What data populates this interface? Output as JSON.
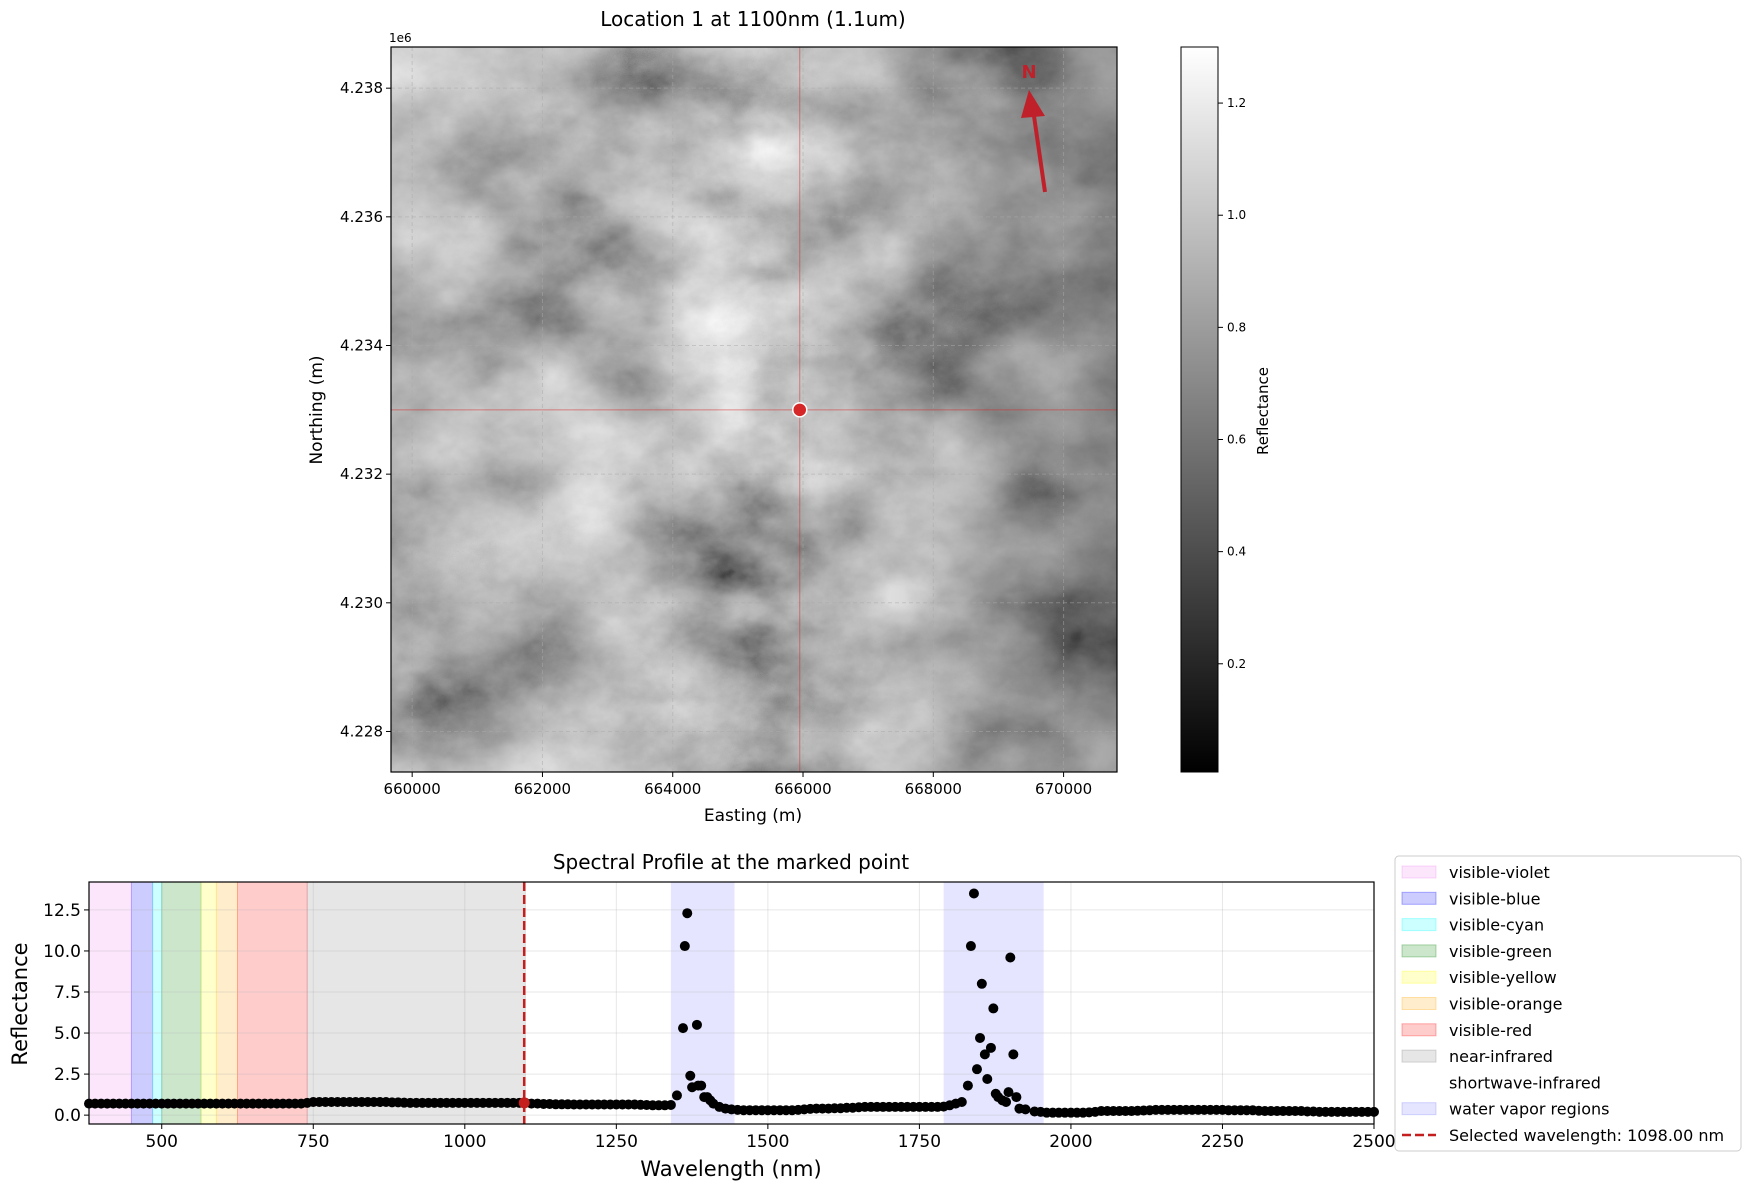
{
  "chart_data": [
    {
      "type": "heatmap",
      "title": "Location 1 at 1100nm (1.1um)",
      "xlabel": "Easting (m)",
      "ylabel": "Northing (m)",
      "y_offset_label": "1e6",
      "xlim": [
        659675,
        670820
      ],
      "ylim": [
        4227370,
        4238640
      ],
      "xticks": [
        660000,
        662000,
        664000,
        666000,
        668000,
        670000
      ],
      "xtick_labels": [
        "660000",
        "662000",
        "664000",
        "666000",
        "668000",
        "670000"
      ],
      "yticks": [
        4228000,
        4230000,
        4232000,
        4234000,
        4236000,
        4238000
      ],
      "ytick_labels": [
        "4.228",
        "4.230",
        "4.232",
        "4.234",
        "4.236",
        "4.238"
      ],
      "grid": true,
      "colormap": "gray",
      "marked_point": {
        "easting": 665950,
        "northing": 4233000,
        "color": "#d62728"
      },
      "north_arrow": {
        "label": "N",
        "color": "#c0202a"
      },
      "colorbar": {
        "label": "Reflectance",
        "range": [
          0.007,
          1.3
        ],
        "ticks": [
          0.2,
          0.4,
          0.6,
          0.8,
          1.0,
          1.2
        ],
        "tick_labels": [
          "0.2",
          "0.4",
          "0.6",
          "0.8",
          "1.0",
          "1.2"
        ]
      }
    },
    {
      "type": "scatter",
      "title": "Spectral Profile at the marked point",
      "xlabel": "Wavelength (nm)",
      "ylabel": "Reflectance",
      "xlim": [
        380,
        2500
      ],
      "ylim": [
        -0.54,
        14.2
      ],
      "xticks": [
        500,
        750,
        1000,
        1250,
        1500,
        1750,
        2000,
        2250,
        2500
      ],
      "xtick_labels": [
        "500",
        "750",
        "1000",
        "1250",
        "1500",
        "1750",
        "2000",
        "2250",
        "2500"
      ],
      "yticks": [
        0,
        2.5,
        5,
        7.5,
        10,
        12.5
      ],
      "ytick_labels": [
        "0.0",
        "2.5",
        "5.0",
        "7.5",
        "10.0",
        "12.5"
      ],
      "grid": true,
      "legend_placement": "outside-right",
      "regions": [
        {
          "name": "visible-violet",
          "range": [
            380,
            450
          ],
          "color": "#ee82ee",
          "alpha": 0.2
        },
        {
          "name": "visible-blue",
          "range": [
            450,
            485
          ],
          "color": "#0000ff",
          "alpha": 0.2
        },
        {
          "name": "visible-cyan",
          "range": [
            485,
            500
          ],
          "color": "#00ffff",
          "alpha": 0.2
        },
        {
          "name": "visible-green",
          "range": [
            500,
            565
          ],
          "color": "#008000",
          "alpha": 0.2
        },
        {
          "name": "visible-yellow",
          "range": [
            565,
            590
          ],
          "color": "#ffff00",
          "alpha": 0.2
        },
        {
          "name": "visible-orange",
          "range": [
            590,
            625
          ],
          "color": "#ffa500",
          "alpha": 0.2
        },
        {
          "name": "visible-red",
          "range": [
            625,
            740
          ],
          "color": "#ff0000",
          "alpha": 0.2
        },
        {
          "name": "near-infrared",
          "range": [
            740,
            1100
          ],
          "color": "#808080",
          "alpha": 0.2
        },
        {
          "name": "shortwave-infrared",
          "range": [
            1100,
            2500
          ],
          "color": "#ffffff",
          "alpha": 0.0
        }
      ],
      "water_vapor": {
        "name": "water vapor regions",
        "ranges": [
          [
            1340,
            1445
          ],
          [
            1790,
            1955
          ]
        ],
        "color": "#0000ff",
        "alpha": 0.1
      },
      "selected": {
        "label": "Selected wavelength: 1098.00 nm",
        "wavelength": 1098,
        "reflectance": 0.75,
        "color": "#c41e1e"
      },
      "points": [
        [
          380,
          0.7
        ],
        [
          390,
          0.7
        ],
        [
          400,
          0.7
        ],
        [
          410,
          0.7
        ],
        [
          420,
          0.7
        ],
        [
          430,
          0.7
        ],
        [
          440,
          0.7
        ],
        [
          450,
          0.7
        ],
        [
          460,
          0.7
        ],
        [
          470,
          0.7
        ],
        [
          480,
          0.7
        ],
        [
          490,
          0.7
        ],
        [
          500,
          0.7
        ],
        [
          510,
          0.7
        ],
        [
          520,
          0.7
        ],
        [
          530,
          0.7
        ],
        [
          540,
          0.7
        ],
        [
          550,
          0.7
        ],
        [
          560,
          0.7
        ],
        [
          570,
          0.7
        ],
        [
          580,
          0.7
        ],
        [
          590,
          0.7
        ],
        [
          600,
          0.7
        ],
        [
          610,
          0.7
        ],
        [
          620,
          0.7
        ],
        [
          630,
          0.7
        ],
        [
          640,
          0.7
        ],
        [
          650,
          0.7
        ],
        [
          660,
          0.7
        ],
        [
          670,
          0.7
        ],
        [
          680,
          0.7
        ],
        [
          690,
          0.7
        ],
        [
          700,
          0.7
        ],
        [
          710,
          0.7
        ],
        [
          720,
          0.7
        ],
        [
          730,
          0.7
        ],
        [
          740,
          0.75
        ],
        [
          750,
          0.8
        ],
        [
          760,
          0.8
        ],
        [
          770,
          0.8
        ],
        [
          780,
          0.8
        ],
        [
          790,
          0.8
        ],
        [
          800,
          0.8
        ],
        [
          810,
          0.8
        ],
        [
          820,
          0.8
        ],
        [
          830,
          0.8
        ],
        [
          840,
          0.8
        ],
        [
          850,
          0.8
        ],
        [
          860,
          0.8
        ],
        [
          870,
          0.8
        ],
        [
          880,
          0.78
        ],
        [
          890,
          0.78
        ],
        [
          900,
          0.76
        ],
        [
          910,
          0.75
        ],
        [
          920,
          0.75
        ],
        [
          930,
          0.75
        ],
        [
          940,
          0.75
        ],
        [
          950,
          0.75
        ],
        [
          960,
          0.75
        ],
        [
          970,
          0.75
        ],
        [
          980,
          0.75
        ],
        [
          990,
          0.75
        ],
        [
          1000,
          0.75
        ],
        [
          1010,
          0.75
        ],
        [
          1020,
          0.75
        ],
        [
          1030,
          0.75
        ],
        [
          1040,
          0.75
        ],
        [
          1050,
          0.75
        ],
        [
          1060,
          0.75
        ],
        [
          1070,
          0.75
        ],
        [
          1080,
          0.75
        ],
        [
          1090,
          0.75
        ],
        [
          1100,
          0.75
        ],
        [
          1110,
          0.7
        ],
        [
          1120,
          0.7
        ],
        [
          1130,
          0.68
        ],
        [
          1140,
          0.68
        ],
        [
          1150,
          0.66
        ],
        [
          1160,
          0.66
        ],
        [
          1170,
          0.66
        ],
        [
          1180,
          0.65
        ],
        [
          1190,
          0.65
        ],
        [
          1200,
          0.65
        ],
        [
          1210,
          0.65
        ],
        [
          1220,
          0.65
        ],
        [
          1230,
          0.65
        ],
        [
          1240,
          0.65
        ],
        [
          1250,
          0.65
        ],
        [
          1260,
          0.65
        ],
        [
          1270,
          0.65
        ],
        [
          1280,
          0.65
        ],
        [
          1290,
          0.63
        ],
        [
          1300,
          0.62
        ],
        [
          1310,
          0.6
        ],
        [
          1320,
          0.6
        ],
        [
          1330,
          0.6
        ],
        [
          1340,
          0.62
        ],
        [
          1350,
          1.2
        ],
        [
          1360,
          5.3
        ],
        [
          1363,
          10.3
        ],
        [
          1367,
          12.3
        ],
        [
          1372,
          2.4
        ],
        [
          1375,
          1.7
        ],
        [
          1383,
          5.5
        ],
        [
          1385,
          1.8
        ],
        [
          1390,
          1.8
        ],
        [
          1395,
          1.1
        ],
        [
          1400,
          1.1
        ],
        [
          1405,
          0.9
        ],
        [
          1410,
          0.7
        ],
        [
          1420,
          0.5
        ],
        [
          1430,
          0.4
        ],
        [
          1440,
          0.35
        ],
        [
          1450,
          0.32
        ],
        [
          1460,
          0.3
        ],
        [
          1470,
          0.3
        ],
        [
          1480,
          0.3
        ],
        [
          1490,
          0.3
        ],
        [
          1500,
          0.3
        ],
        [
          1510,
          0.3
        ],
        [
          1520,
          0.3
        ],
        [
          1530,
          0.3
        ],
        [
          1540,
          0.3
        ],
        [
          1550,
          0.32
        ],
        [
          1560,
          0.35
        ],
        [
          1570,
          0.38
        ],
        [
          1580,
          0.4
        ],
        [
          1590,
          0.4
        ],
        [
          1600,
          0.4
        ],
        [
          1610,
          0.42
        ],
        [
          1620,
          0.42
        ],
        [
          1630,
          0.45
        ],
        [
          1640,
          0.45
        ],
        [
          1650,
          0.48
        ],
        [
          1660,
          0.5
        ],
        [
          1670,
          0.5
        ],
        [
          1680,
          0.5
        ],
        [
          1690,
          0.5
        ],
        [
          1700,
          0.5
        ],
        [
          1710,
          0.5
        ],
        [
          1720,
          0.5
        ],
        [
          1730,
          0.5
        ],
        [
          1740,
          0.5
        ],
        [
          1750,
          0.5
        ],
        [
          1760,
          0.5
        ],
        [
          1770,
          0.5
        ],
        [
          1780,
          0.5
        ],
        [
          1790,
          0.52
        ],
        [
          1800,
          0.6
        ],
        [
          1810,
          0.7
        ],
        [
          1820,
          0.8
        ],
        [
          1830,
          1.8
        ],
        [
          1835,
          10.3
        ],
        [
          1840,
          13.5
        ],
        [
          1845,
          2.8
        ],
        [
          1850,
          4.7
        ],
        [
          1853,
          8.0
        ],
        [
          1858,
          3.7
        ],
        [
          1862,
          2.2
        ],
        [
          1868,
          4.1
        ],
        [
          1872,
          6.5
        ],
        [
          1876,
          1.3
        ],
        [
          1880,
          1.1
        ],
        [
          1887,
          0.9
        ],
        [
          1893,
          0.8
        ],
        [
          1897,
          1.4
        ],
        [
          1900,
          9.6
        ],
        [
          1905,
          3.7
        ],
        [
          1910,
          1.1
        ],
        [
          1915,
          0.4
        ],
        [
          1925,
          0.35
        ],
        [
          1940,
          0.22
        ],
        [
          1950,
          0.2
        ],
        [
          1960,
          0.15
        ],
        [
          1970,
          0.15
        ],
        [
          1980,
          0.15
        ],
        [
          1990,
          0.15
        ],
        [
          2000,
          0.15
        ],
        [
          2010,
          0.15
        ],
        [
          2020,
          0.15
        ],
        [
          2030,
          0.17
        ],
        [
          2040,
          0.2
        ],
        [
          2050,
          0.25
        ],
        [
          2060,
          0.25
        ],
        [
          2070,
          0.25
        ],
        [
          2080,
          0.25
        ],
        [
          2090,
          0.25
        ],
        [
          2100,
          0.25
        ],
        [
          2110,
          0.27
        ],
        [
          2120,
          0.28
        ],
        [
          2130,
          0.3
        ],
        [
          2140,
          0.32
        ],
        [
          2150,
          0.32
        ],
        [
          2160,
          0.32
        ],
        [
          2170,
          0.32
        ],
        [
          2180,
          0.32
        ],
        [
          2190,
          0.32
        ],
        [
          2200,
          0.32
        ],
        [
          2210,
          0.32
        ],
        [
          2220,
          0.32
        ],
        [
          2230,
          0.32
        ],
        [
          2240,
          0.32
        ],
        [
          2250,
          0.32
        ],
        [
          2260,
          0.3
        ],
        [
          2270,
          0.3
        ],
        [
          2280,
          0.3
        ],
        [
          2290,
          0.3
        ],
        [
          2300,
          0.3
        ],
        [
          2310,
          0.27
        ],
        [
          2320,
          0.25
        ],
        [
          2330,
          0.25
        ],
        [
          2340,
          0.25
        ],
        [
          2350,
          0.25
        ],
        [
          2360,
          0.25
        ],
        [
          2370,
          0.25
        ],
        [
          2380,
          0.25
        ],
        [
          2390,
          0.22
        ],
        [
          2400,
          0.22
        ],
        [
          2410,
          0.2
        ],
        [
          2420,
          0.2
        ],
        [
          2430,
          0.2
        ],
        [
          2440,
          0.2
        ],
        [
          2450,
          0.2
        ],
        [
          2460,
          0.2
        ],
        [
          2470,
          0.2
        ],
        [
          2480,
          0.2
        ],
        [
          2490,
          0.2
        ],
        [
          2500,
          0.2
        ]
      ]
    }
  ]
}
